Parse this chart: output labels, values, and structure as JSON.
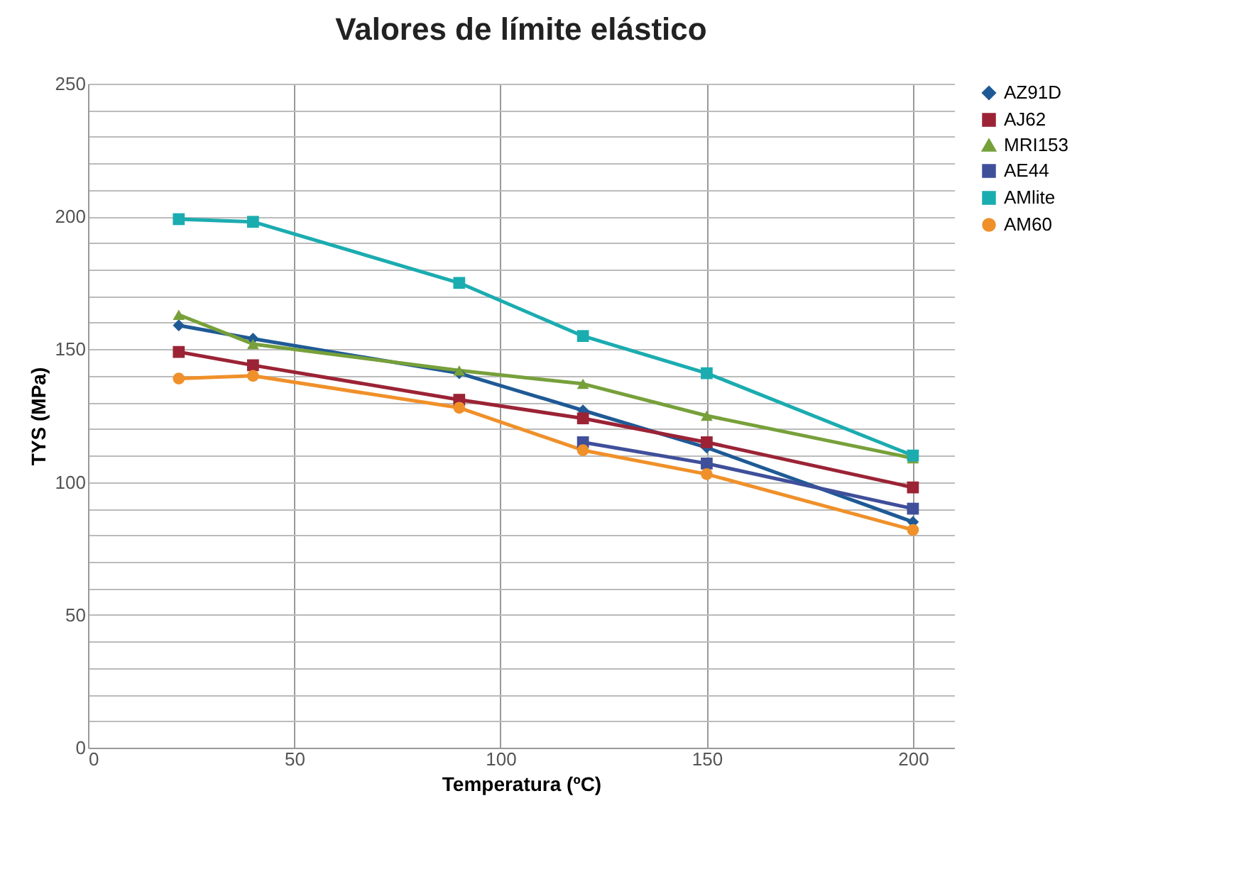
{
  "chart_data": {
    "type": "line",
    "title": "Valores de límite elástico",
    "xlabel": "Temperatura (ºC)",
    "ylabel": "TYS (MPa)",
    "x": [
      22,
      40,
      90,
      120,
      150,
      200
    ],
    "series": [
      {
        "name": "AZ91D",
        "color": "#1f5a96",
        "marker": "diamond",
        "values": [
          159,
          154,
          141,
          127,
          113,
          85
        ]
      },
      {
        "name": "AJ62",
        "color": "#9b2335",
        "marker": "square",
        "values": [
          149,
          144,
          131,
          124,
          115,
          98
        ]
      },
      {
        "name": "MRI153",
        "color": "#77a03a",
        "marker": "triangle",
        "values": [
          163,
          152,
          142,
          137,
          125,
          109
        ]
      },
      {
        "name": "AE44",
        "color": "#3f4f9a",
        "marker": "square",
        "x": [
          120,
          150,
          200
        ],
        "values": [
          115,
          107,
          90
        ]
      },
      {
        "name": "AMlite",
        "color": "#1bacb0",
        "marker": "square",
        "values": [
          199,
          198,
          175,
          155,
          141,
          110
        ]
      },
      {
        "name": "AM60",
        "color": "#f0902a",
        "marker": "circle",
        "values": [
          139,
          140,
          128,
          112,
          103,
          82
        ]
      }
    ],
    "xlim": [
      0,
      210
    ],
    "xticks": [
      0,
      50,
      100,
      150,
      200
    ],
    "ylim": [
      0,
      250
    ],
    "yticks": [
      0,
      {
        "value": 10,
        "label": null
      },
      {
        "value": 20,
        "label": null
      },
      {
        "value": 30,
        "label": null
      },
      {
        "value": 40,
        "label": null
      },
      50,
      {
        "value": 60,
        "label": null
      },
      {
        "value": 70,
        "label": null
      },
      {
        "value": 80,
        "label": null
      },
      {
        "value": 90,
        "label": null
      },
      100,
      {
        "value": 110,
        "label": null
      },
      {
        "value": 120,
        "label": null
      },
      {
        "value": 130,
        "label": null
      },
      {
        "value": 140,
        "label": null
      },
      150,
      {
        "value": 160,
        "label": null
      },
      {
        "value": 170,
        "label": null
      },
      {
        "value": 180,
        "label": null
      },
      {
        "value": 190,
        "label": null
      },
      200,
      {
        "value": 210,
        "label": null
      },
      {
        "value": 220,
        "label": null
      },
      {
        "value": 230,
        "label": null
      },
      {
        "value": 240,
        "label": null
      },
      250
    ],
    "grid": true,
    "legend": "right",
    "line_style": "solid"
  }
}
